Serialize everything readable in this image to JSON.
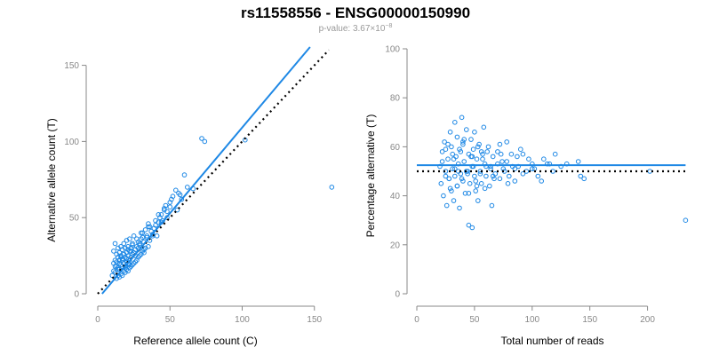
{
  "title": "rs11558556 - ENSG00000150990",
  "subtitle_prefix": "p-value: 3.67×10",
  "subtitle_exponent": "−8",
  "colors": {
    "points": "#1e88e5",
    "fit_line": "#1e88e5",
    "reference_line": "#000000",
    "axis": "#888888"
  },
  "chart_data": [
    {
      "type": "scatter",
      "name": "counts",
      "xlabel": "Reference allele count (C)",
      "ylabel": "Alternative allele count (T)",
      "xlim": [
        0,
        160
      ],
      "ylim": [
        0,
        155
      ],
      "xticks": [
        0,
        50,
        100,
        150
      ],
      "yticks": [
        0,
        50,
        100,
        150
      ],
      "fit_line": {
        "x": [
          3,
          147
        ],
        "y": [
          0,
          162
        ]
      },
      "reference_line": {
        "x": [
          0,
          160
        ],
        "y": [
          0,
          160
        ]
      },
      "x": [
        10,
        11,
        11,
        12,
        12,
        12,
        13,
        13,
        13,
        14,
        14,
        14,
        14,
        15,
        15,
        15,
        15,
        16,
        16,
        16,
        16,
        17,
        17,
        17,
        17,
        18,
        18,
        18,
        18,
        19,
        19,
        19,
        19,
        20,
        20,
        20,
        20,
        21,
        21,
        21,
        21,
        22,
        22,
        22,
        22,
        23,
        23,
        23,
        24,
        24,
        24,
        25,
        25,
        25,
        26,
        26,
        27,
        27,
        28,
        28,
        29,
        29,
        30,
        30,
        31,
        31,
        32,
        32,
        33,
        34,
        35,
        35,
        36,
        37,
        38,
        39,
        40,
        41,
        42,
        43,
        44,
        45,
        46,
        47,
        48,
        50,
        51,
        52,
        54,
        55,
        57,
        60,
        62,
        66,
        72,
        74,
        102,
        162,
        11,
        12,
        13,
        14,
        15,
        16,
        17,
        18,
        19,
        20,
        21,
        22,
        23,
        24,
        25,
        26,
        27,
        28,
        29,
        30,
        31,
        32,
        33,
        34,
        35,
        36,
        38,
        40,
        42,
        44,
        46,
        48,
        50,
        56,
        58
      ],
      "y": [
        12,
        20,
        28,
        14,
        22,
        33,
        10,
        18,
        26,
        12,
        17,
        24,
        30,
        11,
        16,
        22,
        27,
        13,
        19,
        25,
        31,
        12,
        18,
        23,
        29,
        15,
        20,
        26,
        33,
        14,
        18,
        24,
        30,
        16,
        21,
        27,
        35,
        15,
        20,
        25,
        31,
        17,
        22,
        28,
        36,
        18,
        24,
        30,
        19,
        26,
        33,
        20,
        27,
        38,
        21,
        29,
        22,
        31,
        24,
        34,
        25,
        32,
        26,
        36,
        28,
        40,
        27,
        34,
        30,
        37,
        31,
        44,
        35,
        41,
        38,
        43,
        45,
        38,
        47,
        50,
        52,
        48,
        55,
        58,
        54,
        60,
        62,
        64,
        68,
        55,
        65,
        78,
        70,
        69,
        102,
        100,
        101,
        70,
        15,
        18,
        21,
        16,
        20,
        24,
        22,
        26,
        17,
        23,
        29,
        19,
        28,
        32,
        27,
        25,
        36,
        30,
        33,
        40,
        37,
        29,
        42,
        38,
        46,
        44,
        39,
        48,
        52,
        47,
        56,
        50,
        57,
        66,
        62
      ]
    },
    {
      "type": "scatter",
      "name": "percentage",
      "xlabel": "Total number of reads",
      "ylabel": "Percentage alternative (T)",
      "xlim": [
        0,
        235
      ],
      "ylim": [
        0,
        100
      ],
      "xticks": [
        0,
        50,
        100,
        150,
        200
      ],
      "yticks": [
        0,
        20,
        40,
        60,
        80,
        100
      ],
      "fit_line": {
        "x": [
          0,
          233
        ],
        "y": [
          52.5,
          52.5
        ]
      },
      "reference_line": {
        "x": [
          0,
          233
        ],
        "y": [
          50,
          50
        ]
      },
      "x": [
        20,
        21,
        22,
        23,
        24,
        25,
        26,
        27,
        28,
        29,
        30,
        30,
        31,
        32,
        33,
        33,
        34,
        35,
        35,
        36,
        37,
        38,
        38,
        39,
        40,
        40,
        41,
        42,
        43,
        44,
        45,
        45,
        46,
        47,
        48,
        48,
        49,
        50,
        50,
        51,
        52,
        53,
        54,
        55,
        56,
        57,
        58,
        59,
        60,
        62,
        63,
        64,
        65,
        66,
        68,
        70,
        72,
        74,
        75,
        78,
        80,
        82,
        85,
        88,
        90,
        95,
        100,
        105,
        110,
        115,
        120,
        125,
        130,
        140,
        142,
        145,
        202,
        233,
        22,
        25,
        27,
        29,
        31,
        33,
        35,
        37,
        39,
        41,
        43,
        45,
        47,
        49,
        51,
        53,
        55,
        57,
        59,
        61,
        64,
        67,
        70,
        73,
        76,
        79,
        83,
        87,
        92,
        97,
        102,
        108,
        113,
        118,
        25,
        28,
        32,
        36,
        40,
        44,
        48,
        52,
        56,
        60,
        66,
        72,
        78,
        85,
        92,
        100
      ],
      "y": [
        52,
        45,
        58,
        40,
        62,
        50,
        36,
        55,
        47,
        66,
        42,
        60,
        51,
        38,
        70,
        48,
        56,
        44,
        64,
        53,
        35,
        58,
        49,
        72,
        46,
        61,
        54,
        41,
        67,
        50,
        28,
        57,
        45,
        63,
        52,
        27,
        59,
        48,
        66,
        42,
        55,
        38,
        61,
        50,
        45,
        57,
        68,
        53,
        48,
        60,
        44,
        52,
        36,
        56,
        49,
        58,
        47,
        54,
        51,
        62,
        48,
        57,
        46,
        52,
        59,
        50,
        51,
        48,
        55,
        53,
        57,
        52,
        53,
        54,
        48,
        47,
        50,
        30,
        54,
        48,
        61,
        43,
        57,
        51,
        44,
        59,
        47,
        63,
        50,
        41,
        56,
        52,
        46,
        60,
        49,
        55,
        43,
        58,
        51,
        47,
        53,
        57,
        50,
        45,
        52,
        56,
        49,
        55,
        51,
        46,
        53,
        50,
        59,
        47,
        55,
        50,
        62,
        49,
        56,
        44,
        58,
        52,
        48,
        61,
        54,
        51,
        57,
        53
      ]
    }
  ]
}
